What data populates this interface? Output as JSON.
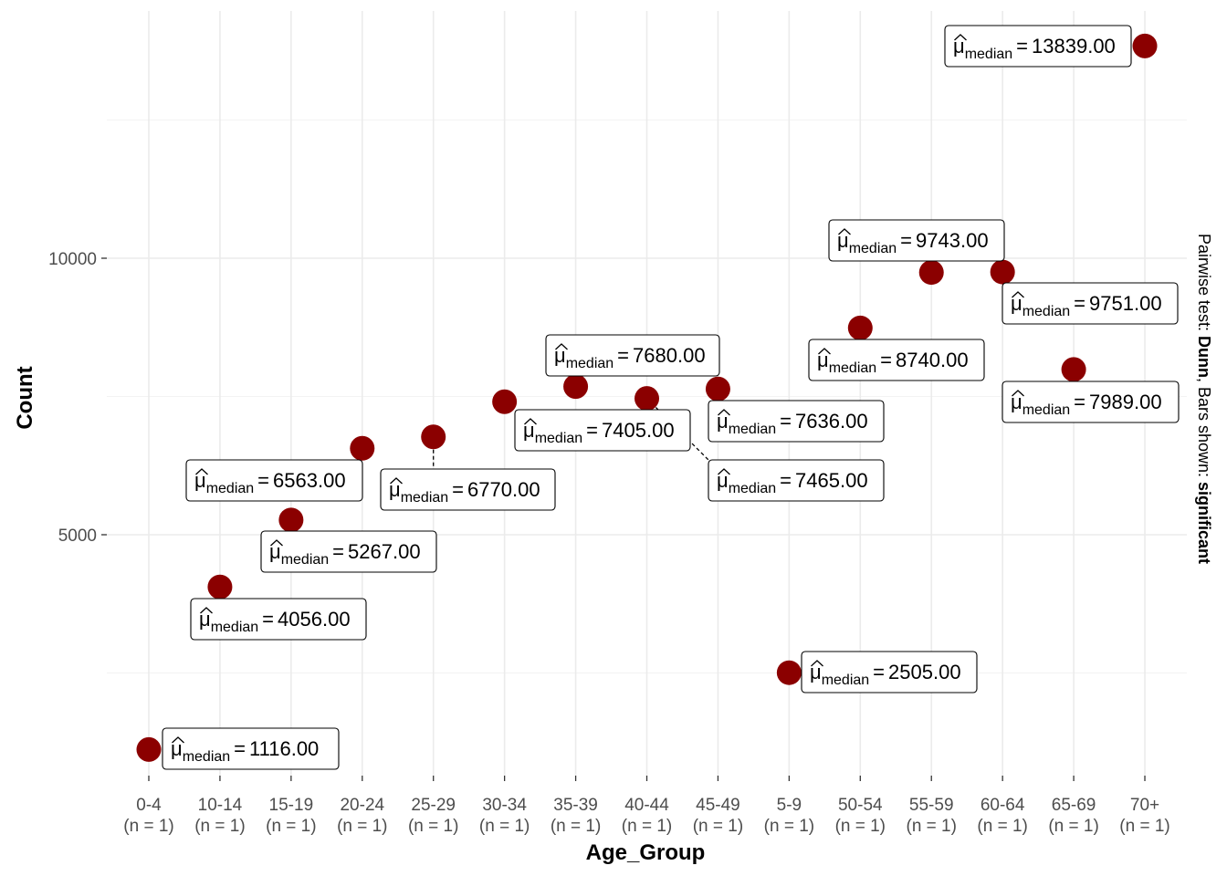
{
  "chart_data": {
    "type": "scatter",
    "xlabel": "Age_Group",
    "ylabel": "Count",
    "categories": [
      "0-4",
      "10-14",
      "15-19",
      "20-24",
      "25-29",
      "30-34",
      "35-39",
      "40-44",
      "45-49",
      "5-9",
      "50-54",
      "55-59",
      "60-64",
      "65-69",
      "70+"
    ],
    "n_labels": [
      "(n = 1)",
      "(n = 1)",
      "(n = 1)",
      "(n = 1)",
      "(n = 1)",
      "(n = 1)",
      "(n = 1)",
      "(n = 1)",
      "(n = 1)",
      "(n = 1)",
      "(n = 1)",
      "(n = 1)",
      "(n = 1)",
      "(n = 1)",
      "(n = 1)"
    ],
    "values": [
      1116,
      4056,
      5267,
      6563,
      6770,
      7405,
      7680,
      7465,
      7636,
      2505,
      8740,
      9743,
      9751,
      7989,
      13839
    ],
    "median_labels": [
      "1116.00",
      "4056.00",
      "5267.00",
      "6563.00",
      "6770.00",
      "7405.00",
      "7680.00",
      "7465.00",
      "7636.00",
      "2505.00",
      "8740.00",
      "9743.00",
      "9751.00",
      "7989.00",
      "13839.00"
    ],
    "label_prefix": "μ",
    "label_sub": "median",
    "label_eq": "=",
    "y_ticks": [
      5000,
      10000
    ],
    "y_tick_labels": [
      "5000",
      "10000"
    ],
    "ylim": [
      500,
      14500
    ],
    "point_color": "#8b0000",
    "grid": true,
    "side_caption": {
      "prefix": "Pairwise test: ",
      "test": "Dunn",
      "middle": ", Bars shown: ",
      "shown": "significant"
    }
  }
}
